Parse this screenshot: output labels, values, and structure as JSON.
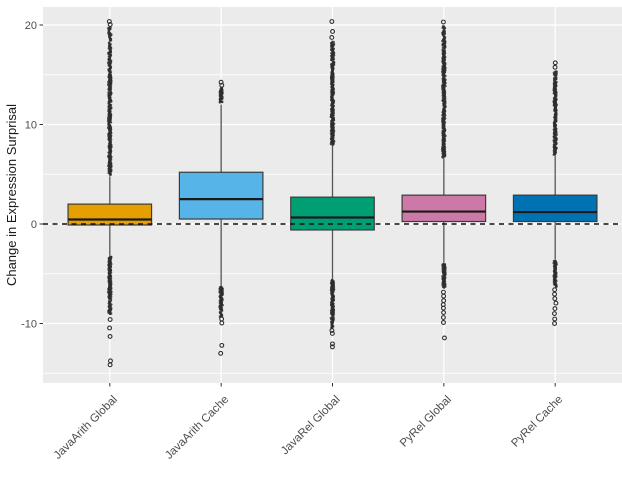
{
  "chart_data": {
    "type": "boxplot",
    "title": "",
    "xlabel": "",
    "ylabel": "Change in Expression Surprisal",
    "ylim": [
      -16,
      21.8
    ],
    "yticks": [
      20,
      10,
      0,
      -10
    ],
    "ytick_labels": [
      "20",
      "10",
      "0",
      "-10"
    ],
    "minor_yticks": [
      15,
      5,
      -5,
      -15
    ],
    "grid": true,
    "legend": "none",
    "zero_reference_line": {
      "y": 0,
      "style": "dashed",
      "color": "#111111"
    },
    "categories": [
      "JavaArith Global",
      "JavaArith Cache",
      "JavaRel Global",
      "PyRel Global",
      "PyRel Cache"
    ],
    "series": [
      {
        "label": "JavaArith Global",
        "color": "#E69F00",
        "q1": -0.1,
        "median": 0.45,
        "q3": 2.0,
        "whisker_low": -3.2,
        "whisker_high": 4.8,
        "outlier_runs_high": [
          [
            5.0,
            15.0,
            300
          ],
          [
            15.1,
            18.2,
            70
          ],
          [
            18.3,
            19.8,
            22
          ]
        ],
        "outlier_points_high": [
          20.05,
          20.35
        ],
        "outlier_runs_low": [
          [
            -7.6,
            -3.3,
            130
          ],
          [
            -9.1,
            -7.7,
            30
          ]
        ],
        "outlier_points_low": [
          -9.6,
          -10.45,
          -11.3,
          -13.75,
          -14.15
        ]
      },
      {
        "label": "JavaArith Cache",
        "color": "#56B4E9",
        "q1": 0.5,
        "median": 2.5,
        "q3": 5.2,
        "whisker_low": -6.2,
        "whisker_high": 12.0,
        "outlier_runs_high": [
          [
            12.2,
            13.7,
            45
          ]
        ],
        "outlier_points_high": [
          13.95,
          14.25
        ],
        "outlier_runs_low": [
          [
            -8.7,
            -6.3,
            70
          ],
          [
            -9.3,
            -8.8,
            10
          ]
        ],
        "outlier_points_low": [
          -9.55,
          -9.95,
          -12.2,
          -13.0
        ]
      },
      {
        "label": "JavaRel Global",
        "color": "#009E73",
        "q1": -0.6,
        "median": 0.65,
        "q3": 2.7,
        "whisker_low": -5.5,
        "whisker_high": 7.9,
        "outlier_runs_high": [
          [
            8.0,
            16.3,
            260
          ],
          [
            16.4,
            18.3,
            45
          ]
        ],
        "outlier_points_high": [
          18.75,
          19.35,
          20.35
        ],
        "outlier_runs_low": [
          [
            -9.2,
            -5.6,
            110
          ],
          [
            -10.5,
            -9.3,
            25
          ]
        ],
        "outlier_points_low": [
          -10.7,
          -11.0,
          -12.05,
          -12.35
        ]
      },
      {
        "label": "PyRel Global",
        "color": "#CC79A7",
        "q1": 0.25,
        "median": 1.25,
        "q3": 2.9,
        "whisker_low": -3.9,
        "whisker_high": 6.6,
        "outlier_runs_high": [
          [
            6.7,
            17.5,
            300
          ],
          [
            17.6,
            19.5,
            45
          ],
          [
            19.6,
            19.9,
            6
          ]
        ],
        "outlier_points_high": [
          20.3
        ],
        "outlier_runs_low": [
          [
            -6.4,
            -4.0,
            70
          ]
        ],
        "outlier_points_low": [
          -6.85,
          -7.25,
          -7.7,
          -8.1,
          -8.45,
          -8.9,
          -9.4,
          -9.9,
          -11.45
        ]
      },
      {
        "label": "PyRel Cache",
        "color": "#0072B2",
        "q1": 0.25,
        "median": 1.2,
        "q3": 2.9,
        "whisker_low": -3.6,
        "whisker_high": 6.9,
        "outlier_runs_high": [
          [
            7.0,
            14.3,
            200
          ],
          [
            14.4,
            15.4,
            18
          ]
        ],
        "outlier_points_high": [
          15.75,
          16.2
        ],
        "outlier_runs_low": [
          [
            -6.3,
            -3.7,
            70
          ]
        ],
        "outlier_points_low": [
          -6.6,
          -7.05,
          -7.5,
          -7.95,
          -8.5,
          -9.0,
          -9.55,
          -10.0
        ]
      }
    ]
  },
  "style": {
    "panel_bg": "#EBEBEB",
    "grid_color": "#FFFFFF",
    "box_border": "#3B3B3B",
    "median_color": "#1A1A1A",
    "whisker_color": "#555555",
    "outlier_color": "#2E2E2E",
    "tick_color": "#333333",
    "axis_text_color": "#4D4D4D",
    "axis_title_color": "#1A1A1A",
    "background": "#FFFFFF"
  }
}
